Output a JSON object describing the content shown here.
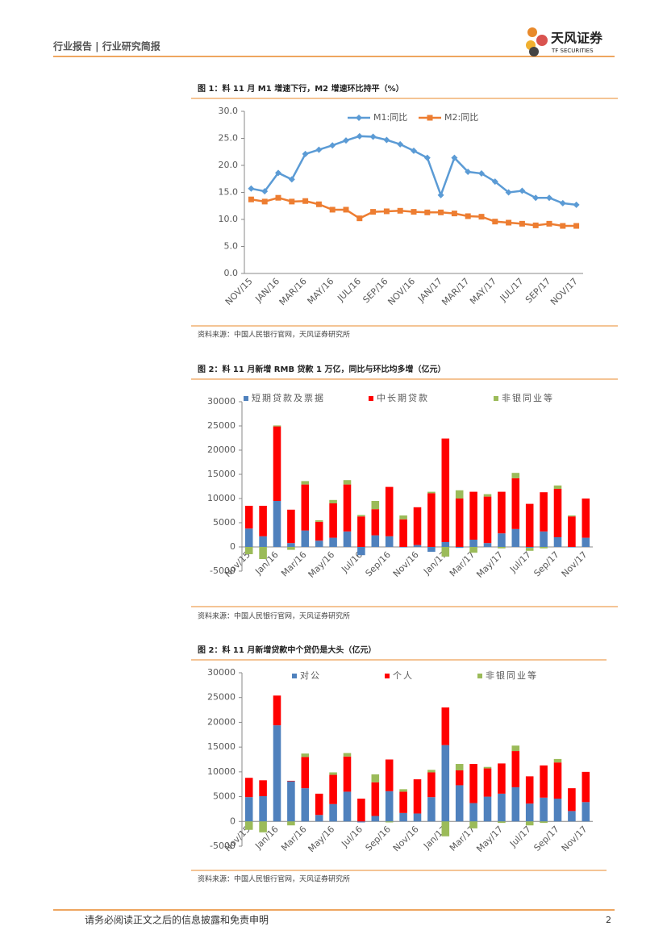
{
  "header": {
    "title": "行业报告 | 行业研究简报",
    "logo_cn": "天风证券",
    "logo_en": "TF SECURITIES"
  },
  "chart_data": [
    {
      "type": "line",
      "title": "图 1：料 11 月 M1 增速下行，M2 增速环比持平（%）",
      "source": "资料来源：中国人民银行官网，天风证券研究所",
      "categories": [
        "NOV/15",
        null,
        "JAN/16",
        null,
        "MAR/16",
        null,
        "MAY/16",
        null,
        "JUL/16",
        null,
        "SEP/16",
        null,
        "NOV/16",
        null,
        "JAN/17",
        null,
        "MAR/17",
        null,
        "MAY/17",
        null,
        "JUL/17",
        null,
        "SEP/17",
        null,
        "NOV/17"
      ],
      "series": [
        {
          "name": "M1:同比",
          "color": "#5b9bd5",
          "marker": "diamond",
          "values": [
            15.7,
            15.2,
            18.6,
            17.4,
            22.1,
            22.9,
            23.7,
            24.6,
            25.4,
            25.3,
            24.7,
            23.9,
            22.7,
            21.4,
            14.5,
            21.4,
            18.8,
            18.5,
            17.0,
            15.0,
            15.3,
            14.0,
            14.0,
            13.0,
            12.7
          ]
        },
        {
          "name": "M2:同比",
          "color": "#ed7d31",
          "marker": "square",
          "values": [
            13.7,
            13.3,
            14.0,
            13.3,
            13.4,
            12.8,
            11.8,
            11.8,
            10.2,
            11.4,
            11.5,
            11.6,
            11.4,
            11.3,
            11.3,
            11.1,
            10.6,
            10.5,
            9.6,
            9.4,
            9.2,
            8.9,
            9.2,
            8.8,
            8.8
          ]
        }
      ],
      "ylim": [
        0,
        30
      ],
      "yticks": [
        {
          "value": 0,
          "label": "0.0"
        },
        {
          "value": 5,
          "label": "5.0"
        },
        {
          "value": 10,
          "label": "10.0"
        },
        {
          "value": 15,
          "label": "15.0"
        },
        {
          "value": 20,
          "label": "20.0"
        },
        {
          "value": 25,
          "label": "25.0"
        },
        {
          "value": 30,
          "label": "30.0"
        }
      ],
      "grid": false
    },
    {
      "type": "stacked_bar",
      "title": "图 2：料 11 月新增 RMB 贷款 1 万亿，同比与环比均多增（亿元）",
      "source": "资料来源：中国人民银行官网，天风证券研究所",
      "categories": [
        "Nov/15",
        null,
        "Jan/16",
        null,
        "Mar/16",
        null,
        "May/16",
        null,
        "Jul/16",
        null,
        "Sep/16",
        null,
        "Nov/16",
        null,
        "Jan/17",
        null,
        "Mar/17",
        null,
        "May/17",
        null,
        "Jul/17",
        null,
        "Sep/17",
        null,
        "Nov/17"
      ],
      "series": [
        {
          "name": "短期贷款及票据",
          "color": "#4f81bd",
          "values": [
            3800,
            2200,
            9500,
            800,
            3400,
            1300,
            1900,
            3200,
            -1700,
            2400,
            2200,
            -100,
            400,
            -1000,
            1000,
            -200,
            1500,
            800,
            2800,
            3700,
            -200,
            3200,
            2000,
            -100,
            1900
          ]
        },
        {
          "name": "中长期贷款",
          "color": "#ff0000",
          "values": [
            4700,
            6300,
            15400,
            6900,
            9500,
            3900,
            7100,
            9700,
            6300,
            5400,
            10200,
            5700,
            7800,
            11100,
            21400,
            10000,
            9900,
            9600,
            8600,
            10500,
            8900,
            8100,
            10000,
            6300,
            8100
          ]
        },
        {
          "name": "非银同业等",
          "color": "#9bbb59",
          "values": [
            -1500,
            -2500,
            200,
            -600,
            700,
            300,
            700,
            900,
            300,
            1700,
            0,
            800,
            0,
            300,
            -2000,
            1700,
            -1200,
            500,
            -300,
            1100,
            -600,
            -300,
            700,
            200,
            0
          ]
        }
      ],
      "ylim": [
        -5000,
        30000
      ],
      "yticks": [
        -5000,
        0,
        5000,
        10000,
        15000,
        20000,
        25000,
        30000
      ],
      "grid": false
    },
    {
      "type": "stacked_bar",
      "title": "图 2：料 11 月新增贷款中个贷仍是大头（亿元）",
      "source": "资料来源：中国人民银行官网，天风证券研究所",
      "categories": [
        "Nov/15",
        null,
        "Jan/16",
        null,
        "Mar/16",
        null,
        "May/16",
        null,
        "Jul/16",
        null,
        "Sep/16",
        null,
        "Nov/16",
        null,
        "Jan/17",
        null,
        "Mar/17",
        null,
        "May/17",
        null,
        "Jul/17",
        null,
        "Sep/17",
        null,
        "Nov/17"
      ],
      "series": [
        {
          "name": "对公",
          "color": "#4f81bd",
          "values": [
            4900,
            5100,
            19400,
            8100,
            6700,
            1300,
            3500,
            6000,
            -200,
            1100,
            6100,
            1700,
            1600,
            4900,
            15400,
            7300,
            3700,
            5000,
            5600,
            6900,
            3600,
            4800,
            4600,
            2100,
            3900
          ]
        },
        {
          "name": "个人",
          "color": "#ff0000",
          "values": [
            3900,
            3200,
            6000,
            100,
            6300,
            4300,
            5900,
            7100,
            4600,
            6800,
            6400,
            4300,
            6900,
            5000,
            7600,
            3000,
            7900,
            5700,
            6100,
            7300,
            5500,
            6500,
            7300,
            4600,
            6100
          ]
        },
        {
          "name": "非银同业等",
          "color": "#9bbb59",
          "values": [
            -1700,
            -2200,
            0,
            -800,
            700,
            0,
            500,
            700,
            0,
            1600,
            -200,
            500,
            0,
            500,
            -3000,
            1300,
            -1400,
            300,
            -300,
            1100,
            -800,
            -300,
            700,
            0,
            0
          ]
        }
      ],
      "ylim": [
        -5000,
        30000
      ],
      "yticks": [
        -5000,
        0,
        5000,
        10000,
        15000,
        20000,
        25000,
        30000
      ],
      "grid": false
    }
  ],
  "footer": {
    "disclaimer": "请务必阅读正文之后的信息披露和免责申明",
    "page": "2"
  }
}
